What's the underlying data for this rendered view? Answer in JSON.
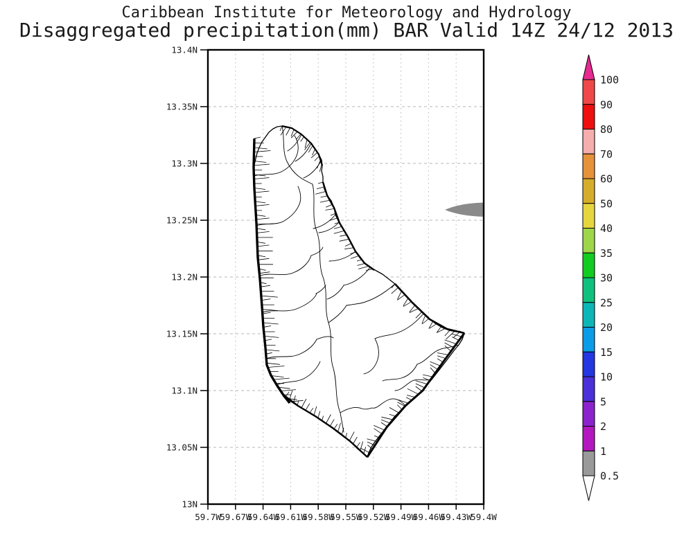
{
  "header": {
    "title_line1": "Caribbean Institute for Meteorology and Hydrology",
    "title_line2": "Disaggregated precipitation(mm) BAR Valid 14Z 24/12 2013"
  },
  "map": {
    "lat_ticks": [
      "13.4N",
      "13.35N",
      "13.3N",
      "13.25N",
      "13.2N",
      "13.15N",
      "13.1N",
      "13.05N",
      "13N"
    ],
    "lon_ticks": [
      "59.7W",
      "59.67W",
      "59.64W",
      "59.61W",
      "59.58W",
      "59.55W",
      "59.52W",
      "59.49W",
      "59.46W",
      "59.43W",
      "59.4W"
    ]
  },
  "colorbar": {
    "levels": [
      "100",
      "90",
      "80",
      "70",
      "60",
      "50",
      "40",
      "35",
      "30",
      "25",
      "20",
      "15",
      "10",
      "5",
      "2",
      "1",
      "0.5"
    ],
    "segment_colors_top_to_bottom": [
      "#f04848",
      "#ee0f0f",
      "#f5adad",
      "#e6923b",
      "#d6ad2b",
      "#e6d63e",
      "#9ed64a",
      "#12cc22",
      "#10c17d",
      "#0cb6b6",
      "#0b9ce8",
      "#2437e0",
      "#4b2fd8",
      "#8c22cd",
      "#b317c0",
      "#9a9a9a"
    ],
    "above_max_arrow_color": "#e72a92",
    "below_min_arrow_color": "#ffffff"
  },
  "colors": {
    "background": "#ffffff",
    "frame": "#000000",
    "grid": "#b4b4b4",
    "coastline": "#000000",
    "patch_gray": "#8a8a8a"
  },
  "chart_data": {
    "type": "map",
    "title": "Disaggregated precipitation(mm) BAR Valid 14Z 24/12 2013",
    "source": "Caribbean Institute for Meteorology and Hydrology",
    "region": "Barbados watershed map",
    "lat_axis": {
      "ticks": [
        "13.4N",
        "13.35N",
        "13.3N",
        "13.25N",
        "13.2N",
        "13.15N",
        "13.1N",
        "13.05N",
        "13N"
      ],
      "range": [
        13.0,
        13.4
      ],
      "grid": true
    },
    "lon_axis": {
      "ticks": [
        "59.7W",
        "59.67W",
        "59.64W",
        "59.61W",
        "59.58W",
        "59.55W",
        "59.52W",
        "59.49W",
        "59.46W",
        "59.43W",
        "59.4W"
      ],
      "range": [
        59.7,
        59.4
      ],
      "grid": true
    },
    "colorbar_levels_mm": [
      0.5,
      1,
      2,
      5,
      10,
      15,
      20,
      25,
      30,
      35,
      40,
      50,
      60,
      70,
      80,
      90,
      100
    ],
    "features": [
      {
        "name": "precipitation-patch",
        "location": "offshore east of Barbados at right frame edge",
        "approx_lat": "13.26N",
        "approx_lon": "59.41W",
        "value_mm": "0.5-1",
        "color": "#8a8a8a"
      },
      {
        "name": "island-land",
        "location": "Barbados",
        "value_mm": "< 0.5 (unshaded)",
        "color": "#ffffff"
      }
    ]
  }
}
